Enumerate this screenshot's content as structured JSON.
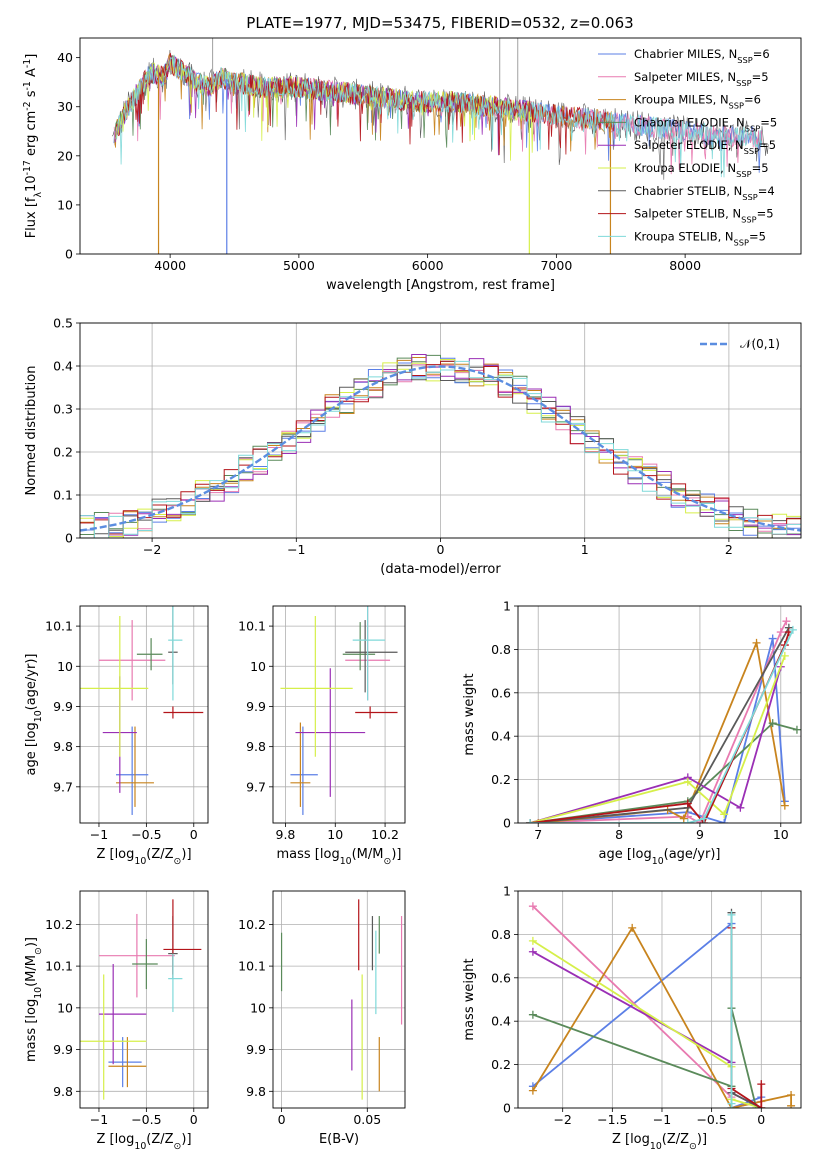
{
  "figure_title": "PLATE=1977, MJD=53475, FIBERID=0532, z=0.063",
  "model_colors": [
    "#5b7fe6",
    "#e87ab0",
    "#c8841e",
    "#5a8a5a",
    "#9a2fb5",
    "#d6ef4a",
    "#5a5a5a",
    "#b3141a",
    "#7fd9d9"
  ],
  "chart_data": [
    {
      "id": "spectrum",
      "type": "line",
      "title": "PLATE=1977, MJD=53475, FIBERID=0532, z=0.063",
      "xlabel": "wavelength [Angstrom, rest frame]",
      "ylabel": "Flux [f$_\\lambda$10$^{-17}$ erg cm$^{-2}$ s$^{-1}$ A$^{-1}$]",
      "xlim": [
        3300,
        8900
      ],
      "ylim": [
        0,
        44
      ],
      "xticks": [
        4000,
        5000,
        6000,
        7000,
        8000
      ],
      "yticks": [
        0,
        10,
        20,
        30,
        40
      ],
      "legend_position": "top-right",
      "legend": [
        "Chabrier MILES, N$_{SSP}$=6",
        "Salpeter MILES, N$_{SSP}$=5",
        "Kroupa MILES, N$_{SSP}$=6",
        "Chabrier ELODIE, N$_{SSP}$=5",
        "Salpeter ELODIE, N$_{SSP}$=5",
        "Kroupa ELODIE, N$_{SSP}$=5",
        "Chabrier STELIB, N$_{SSP}$=4",
        "Salpeter STELIB, N$_{SSP}$=5",
        "Kroupa STELIB, N$_{SSP}$=5"
      ],
      "continuum": {
        "x": [
          3550,
          3650,
          3750,
          3850,
          3950,
          4000,
          4100,
          4200,
          4300,
          4400,
          4500,
          4700,
          5000,
          5300,
          5600,
          5900,
          6200,
          6500,
          6800,
          7100,
          7400,
          7700,
          8000,
          8300,
          8500,
          8650
        ],
        "y": [
          23,
          29,
          33,
          37,
          36,
          39,
          37,
          35,
          34,
          36,
          35,
          34,
          34,
          33,
          32,
          31,
          31,
          30,
          29,
          28,
          27,
          26,
          25,
          24,
          24,
          23
        ]
      },
      "drops": [
        {
          "x": 3910,
          "y": 0
        },
        {
          "x": 4440,
          "y": 0
        },
        {
          "x": 6790,
          "y": 0
        },
        {
          "x": 7420,
          "y": 0
        }
      ],
      "spikes": [
        {
          "x": 4330,
          "y": 44
        },
        {
          "x": 6560,
          "y": 44
        },
        {
          "x": 6700,
          "y": 44
        }
      ]
    },
    {
      "id": "residuals",
      "type": "histogram",
      "xlabel": "(data-model)/error",
      "ylabel": "Normed distribution",
      "xlim": [
        -2.5,
        2.5
      ],
      "ylim": [
        0,
        0.5
      ],
      "xticks": [
        -2,
        -1,
        0,
        1,
        2
      ],
      "yticks": [
        0.0,
        0.1,
        0.2,
        0.3,
        0.4,
        0.5
      ],
      "bin_width": 0.1,
      "legend": [
        "$\\mathcal{N}(0,1)$"
      ],
      "legend_position": "top-right",
      "reference_curve": "normal(0,1)"
    },
    {
      "id": "age-vs-Z",
      "type": "scatter",
      "xlabel": "Z [log$_{10}$(Z/Z$_\\odot$)]",
      "ylabel": "age  [log$_{10}$(age/yr)]",
      "xlim": [
        -1.2,
        0.15
      ],
      "ylim": [
        9.61,
        10.15
      ],
      "xticks": [
        -1.0,
        -0.5,
        0.0
      ],
      "yticks": [
        9.7,
        9.8,
        9.9,
        10.0,
        10.1
      ],
      "series": [
        {
          "x": -0.65,
          "y": 9.73,
          "xerr": [
            0.17,
            0.17
          ],
          "yerr": [
            0.1,
            0.12
          ],
          "c": 0
        },
        {
          "x": -0.65,
          "y": 10.015,
          "xerr": [
            0.35,
            0.35
          ],
          "yerr": [
            0.1,
            0.1
          ],
          "c": 1
        },
        {
          "x": -0.62,
          "y": 9.71,
          "xerr": [
            0.2,
            0.2
          ],
          "yerr": [
            0.06,
            0.14
          ],
          "c": 2
        },
        {
          "x": -0.45,
          "y": 10.03,
          "xerr": [
            0.15,
            0.12
          ],
          "yerr": [
            0.04,
            0.04
          ],
          "c": 3
        },
        {
          "x": -0.78,
          "y": 9.835,
          "xerr": [
            0.18,
            0.18
          ],
          "yerr": [
            0.15,
            0.14
          ],
          "c": 4
        },
        {
          "x": -0.78,
          "y": 9.945,
          "xerr": [
            0.45,
            0.3
          ],
          "yerr": [
            0.17,
            0.18
          ],
          "c": 5
        },
        {
          "x": -0.22,
          "y": 10.035,
          "xerr": [
            0.05,
            0.05
          ],
          "yerr": [
            0.08,
            0.12
          ],
          "c": 6
        },
        {
          "x": -0.22,
          "y": 9.885,
          "xerr": [
            0.1,
            0.32
          ],
          "yerr": [
            0.015,
            0.015
          ],
          "c": 7
        },
        {
          "x": -0.22,
          "y": 10.065,
          "xerr": [
            0.05,
            0.1
          ],
          "yerr": [
            0.15,
            0.15
          ],
          "c": 8
        }
      ]
    },
    {
      "id": "age-vs-mass",
      "type": "scatter",
      "xlabel": "mass [log$_{10}$(M/M$_\\odot$)]",
      "ylabel": "",
      "xlim": [
        9.75,
        10.28
      ],
      "ylim": [
        9.61,
        10.15
      ],
      "xticks": [
        9.8,
        10.0,
        10.2
      ],
      "yticks": [
        9.7,
        9.8,
        9.9,
        10.0,
        10.1
      ],
      "series": [
        {
          "x": 9.87,
          "y": 9.73,
          "xerr": [
            0.05,
            0.06
          ],
          "yerr": [
            0.1,
            0.12
          ],
          "c": 0
        },
        {
          "x": 10.13,
          "y": 10.015,
          "xerr": [
            0.09,
            0.09
          ],
          "yerr": [
            0.1,
            0.15
          ],
          "c": 1
        },
        {
          "x": 9.86,
          "y": 9.71,
          "xerr": [
            0.04,
            0.04
          ],
          "yerr": [
            0.06,
            0.15
          ],
          "c": 2
        },
        {
          "x": 10.1,
          "y": 10.03,
          "xerr": [
            0.07,
            0.06
          ],
          "yerr": [
            0.04,
            0.08
          ],
          "c": 3
        },
        {
          "x": 9.98,
          "y": 9.835,
          "xerr": [
            0.14,
            0.14
          ],
          "yerr": [
            0.16,
            0.16
          ],
          "c": 4
        },
        {
          "x": 9.92,
          "y": 9.945,
          "xerr": [
            0.14,
            0.15
          ],
          "yerr": [
            0.17,
            0.18
          ],
          "c": 5
        },
        {
          "x": 10.12,
          "y": 10.035,
          "xerr": [
            0.08,
            0.13
          ],
          "yerr": [
            0.1,
            0.08
          ],
          "c": 6
        },
        {
          "x": 10.14,
          "y": 9.885,
          "xerr": [
            0.06,
            0.11
          ],
          "yerr": [
            0.015,
            0.015
          ],
          "c": 7
        },
        {
          "x": 10.13,
          "y": 10.065,
          "xerr": [
            0.06,
            0.07
          ],
          "yerr": [
            0.15,
            0.14
          ],
          "c": 8
        }
      ]
    },
    {
      "id": "mass-weight-vs-age",
      "type": "line",
      "xlabel": "age  [log$_{10}$(age/yr)]",
      "ylabel": "mass weight",
      "xlim": [
        6.75,
        10.25
      ],
      "ylim": [
        0,
        1
      ],
      "xticks": [
        7,
        8,
        9,
        10
      ],
      "yticks": [
        0.0,
        0.2,
        0.4,
        0.6,
        0.8,
        1.0
      ],
      "series": [
        {
          "c": 0,
          "x": [
            6.9,
            8.85,
            9.3,
            9.9,
            10.05
          ],
          "y": [
            0.0,
            0.05,
            0.0,
            0.85,
            0.1
          ]
        },
        {
          "c": 1,
          "x": [
            6.9,
            8.85,
            9.0,
            10.0,
            10.07
          ],
          "y": [
            0.0,
            0.03,
            0.0,
            0.88,
            0.93
          ]
        },
        {
          "c": 2,
          "x": [
            7.0,
            8.6,
            8.8,
            9.7,
            10.05
          ],
          "y": [
            0.0,
            0.06,
            0.02,
            0.83,
            0.08
          ]
        },
        {
          "c": 3,
          "x": [
            6.9,
            8.85,
            9.9,
            10.2
          ],
          "y": [
            0.0,
            0.1,
            0.46,
            0.43
          ]
        },
        {
          "c": 4,
          "x": [
            6.9,
            8.85,
            9.5,
            10.0
          ],
          "y": [
            0.0,
            0.21,
            0.07,
            0.72
          ]
        },
        {
          "c": 5,
          "x": [
            6.9,
            8.85,
            9.3,
            10.05
          ],
          "y": [
            0.0,
            0.19,
            0.04,
            0.77
          ]
        },
        {
          "c": 6,
          "x": [
            6.9,
            8.85,
            10.1
          ],
          "y": [
            0.0,
            0.07,
            0.9
          ]
        },
        {
          "c": 7,
          "x": [
            6.9,
            8.85,
            9.05,
            10.05,
            10.1
          ],
          "y": [
            0.0,
            0.09,
            0.0,
            0.82,
            0.88
          ]
        },
        {
          "c": 8,
          "x": [
            6.9,
            8.85,
            9.05,
            10.15
          ],
          "y": [
            0.0,
            0.0,
            0.02,
            0.89
          ]
        }
      ]
    },
    {
      "id": "mass-vs-Z",
      "type": "scatter",
      "xlabel": "Z [log$_{10}$(Z/Z$_\\odot$)]",
      "ylabel": "mass [log$_{10}$(M/M$_\\odot$)]",
      "xlim": [
        -1.2,
        0.15
      ],
      "ylim": [
        9.76,
        10.28
      ],
      "xticks": [
        -1.0,
        -0.5,
        0.0
      ],
      "yticks": [
        9.8,
        9.9,
        10.0,
        10.1,
        10.2
      ],
      "series": [
        {
          "x": -0.75,
          "y": 9.87,
          "xerr": [
            0.15,
            0.2
          ],
          "yerr": [
            0.06,
            0.06
          ],
          "c": 0
        },
        {
          "x": -0.6,
          "y": 10.125,
          "xerr": [
            0.4,
            0.4
          ],
          "yerr": [
            0.1,
            0.1
          ],
          "c": 1
        },
        {
          "x": -0.7,
          "y": 9.86,
          "xerr": [
            0.2,
            0.2
          ],
          "yerr": [
            0.05,
            0.07
          ],
          "c": 2
        },
        {
          "x": -0.5,
          "y": 10.105,
          "xerr": [
            0.15,
            0.12
          ],
          "yerr": [
            0.06,
            0.06
          ],
          "c": 3
        },
        {
          "x": -0.85,
          "y": 9.985,
          "xerr": [
            0.15,
            0.35
          ],
          "yerr": [
            0.12,
            0.12
          ],
          "c": 4
        },
        {
          "x": -0.95,
          "y": 9.92,
          "xerr": [
            0.3,
            0.45
          ],
          "yerr": [
            0.14,
            0.16
          ],
          "c": 5
        },
        {
          "x": -0.22,
          "y": 10.13,
          "xerr": [
            0.05,
            0.05
          ],
          "yerr": [
            0.06,
            0.09
          ],
          "c": 6
        },
        {
          "x": -0.22,
          "y": 10.14,
          "xerr": [
            0.1,
            0.3
          ],
          "yerr": [
            0.06,
            0.12
          ],
          "c": 7
        },
        {
          "x": -0.22,
          "y": 10.07,
          "xerr": [
            0.05,
            0.1
          ],
          "yerr": [
            0.08,
            0.06
          ],
          "c": 8
        }
      ]
    },
    {
      "id": "mass-vs-EBV",
      "type": "scatter",
      "xlabel": "E(B-V)",
      "ylabel": "",
      "xlim": [
        -0.005,
        0.072
      ],
      "ylim": [
        9.76,
        10.28
      ],
      "xticks": [
        0.0,
        0.05
      ],
      "yticks": [
        9.8,
        9.9,
        10.0,
        10.1,
        10.2
      ],
      "series": [
        {
          "x": 0.0,
          "y": 10.11,
          "xerr": [
            0,
            0
          ],
          "yerr": [
            0.07,
            0.07
          ],
          "c": 3
        },
        {
          "x": 0.041,
          "y": 9.935,
          "xerr": [
            0,
            0
          ],
          "yerr": [
            0.085,
            0.085
          ],
          "c": 4
        },
        {
          "x": 0.047,
          "y": 9.98,
          "xerr": [
            0,
            0
          ],
          "yerr": [
            0.2,
            0.1
          ],
          "c": 5
        },
        {
          "x": 0.053,
          "y": 10.14,
          "xerr": [
            0,
            0
          ],
          "yerr": [
            0.05,
            0.08
          ],
          "c": 6
        },
        {
          "x": 0.055,
          "y": 10.085,
          "xerr": [
            0,
            0
          ],
          "yerr": [
            0.1,
            0.1
          ],
          "c": 8
        },
        {
          "x": 0.057,
          "y": 10.16,
          "xerr": [
            0,
            0
          ],
          "yerr": [
            0.03,
            0.06
          ],
          "c": 3
        },
        {
          "x": 0.045,
          "y": 10.17,
          "xerr": [
            0,
            0
          ],
          "yerr": [
            0.08,
            0.09
          ],
          "c": 7
        },
        {
          "x": 0.057,
          "y": 9.87,
          "xerr": [
            0,
            0
          ],
          "yerr": [
            0.07,
            0.06
          ],
          "c": 2
        },
        {
          "x": 0.07,
          "y": 10.09,
          "xerr": [
            0,
            0
          ],
          "yerr": [
            0.13,
            0.13
          ],
          "c": 1
        }
      ]
    },
    {
      "id": "mass-weight-vs-Z",
      "type": "line",
      "xlabel": "Z [log$_{10}$(Z/Z$_\\odot$)]",
      "ylabel": "mass weight",
      "xlim": [
        -2.45,
        0.4
      ],
      "ylim": [
        0,
        1
      ],
      "xticks": [
        -2.0,
        -1.5,
        -1.0,
        -0.5,
        0.0
      ],
      "yticks": [
        0.0,
        0.2,
        0.4,
        0.6,
        0.8,
        1.0
      ],
      "series": [
        {
          "c": 0,
          "x": [
            -2.3,
            -0.3,
            -0.3,
            0.0
          ],
          "y": [
            0.1,
            0.85,
            0.0,
            0.05
          ]
        },
        {
          "c": 1,
          "x": [
            -2.3,
            -0.3,
            -0.3,
            0.0
          ],
          "y": [
            0.93,
            0.05,
            0.0,
            0.03
          ]
        },
        {
          "c": 2,
          "x": [
            -2.3,
            -1.3,
            -0.3,
            0.3,
            0.3
          ],
          "y": [
            0.08,
            0.83,
            0.0,
            0.06,
            0.01
          ]
        },
        {
          "c": 3,
          "x": [
            -2.3,
            -0.3,
            -0.3,
            -0.05
          ],
          "y": [
            0.43,
            0.1,
            0.46,
            0.0
          ]
        },
        {
          "c": 4,
          "x": [
            -2.3,
            -0.3,
            -0.3,
            0.0
          ],
          "y": [
            0.72,
            0.21,
            0.07,
            0.0
          ]
        },
        {
          "c": 5,
          "x": [
            -2.3,
            -0.3,
            -0.3,
            0.0
          ],
          "y": [
            0.77,
            0.19,
            0.04,
            0.0
          ]
        },
        {
          "c": 6,
          "x": [
            -0.3,
            -0.3,
            0.0
          ],
          "y": [
            0.9,
            0.07,
            0.0
          ]
        },
        {
          "c": 7,
          "x": [
            -0.3,
            -0.3,
            0.0,
            0.0
          ],
          "y": [
            0.83,
            0.09,
            0.0,
            0.11
          ]
        },
        {
          "c": 8,
          "x": [
            -0.3,
            -0.3,
            -0.3
          ],
          "y": [
            0.89,
            0.0,
            0.02
          ]
        }
      ]
    }
  ]
}
